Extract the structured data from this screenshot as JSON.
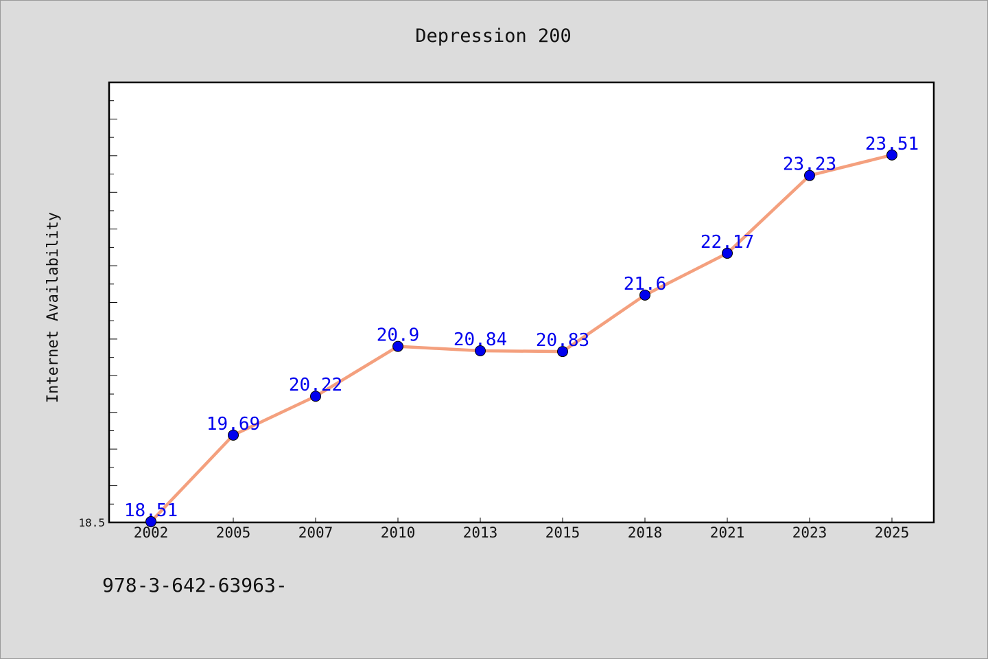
{
  "chart_data": {
    "type": "line",
    "title": "Depression 200",
    "xlabel": "",
    "ylabel": "Internet Availability",
    "categories": [
      "2002",
      "2005",
      "2007",
      "2010",
      "2013",
      "2015",
      "2018",
      "2021",
      "2023",
      "2025"
    ],
    "series": [
      {
        "values": [
          18.51,
          19.69,
          20.22,
          20.9,
          20.84,
          20.83,
          21.6,
          22.17,
          23.23,
          23.51
        ]
      }
    ],
    "ylim": [
      18.5,
      24.5
    ],
    "yticks_labeled": [
      "18.5"
    ],
    "grid": false,
    "legend": "none",
    "data_labels": true,
    "colors": {
      "line": "#f4a07e",
      "marker": "#0000ee",
      "label": "#0000ee",
      "background": "#dcdcdc",
      "plot_background": "#ffffff"
    }
  },
  "footnote": "978-3-642-63963-"
}
